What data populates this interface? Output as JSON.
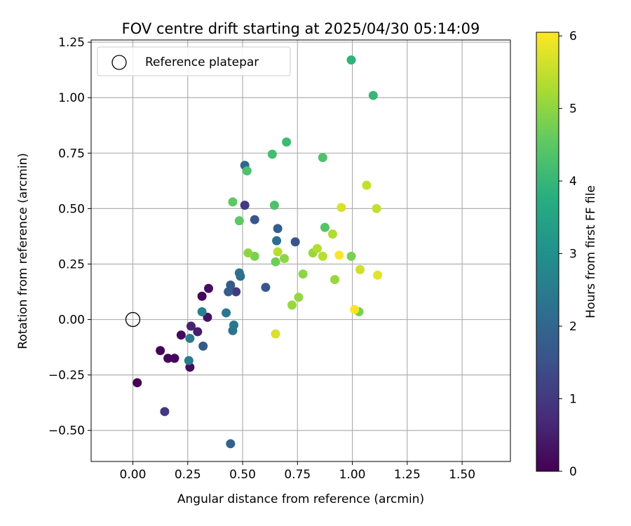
{
  "chart_data": {
    "type": "scatter",
    "title": "FOV centre drift starting at 2025/04/30 05:14:09",
    "xlabel": "Angular distance from reference (arcmin)",
    "ylabel": "Rotation from reference (arcmin)",
    "xlim": [
      -0.19,
      1.72
    ],
    "ylim": [
      -0.64,
      1.26
    ],
    "xticks": [
      "0.00",
      "0.25",
      "0.50",
      "0.75",
      "1.00",
      "1.25",
      "1.50"
    ],
    "yticks": [
      "−0.50",
      "−0.25",
      "0.00",
      "0.25",
      "0.50",
      "0.75",
      "1.00",
      "1.25"
    ],
    "grid": true,
    "legend": {
      "placement": "top-left",
      "entries": [
        "Reference platepar"
      ]
    },
    "reference_point": {
      "x": 0.0,
      "y": 0.0,
      "label": "Reference platepar"
    },
    "colorbar": {
      "label": "Hours from first FF file",
      "range": [
        0,
        6.05
      ],
      "ticks": [
        "0",
        "1",
        "2",
        "3",
        "4",
        "5",
        "6"
      ],
      "colormap": "viridis"
    },
    "points": [
      {
        "x": 0.02,
        "y": -0.285,
        "c": 0.0
      },
      {
        "x": 0.125,
        "y": -0.14,
        "c": 0.05
      },
      {
        "x": 0.16,
        "y": -0.175,
        "c": 0.1
      },
      {
        "x": 0.19,
        "y": -0.175,
        "c": 0.12
      },
      {
        "x": 0.22,
        "y": -0.07,
        "c": 0.15
      },
      {
        "x": 0.26,
        "y": -0.215,
        "c": 0.2
      },
      {
        "x": 0.315,
        "y": 0.105,
        "c": 0.1
      },
      {
        "x": 0.345,
        "y": 0.14,
        "c": 0.25
      },
      {
        "x": 0.34,
        "y": 0.01,
        "c": 0.3
      },
      {
        "x": 0.295,
        "y": -0.055,
        "c": 0.5
      },
      {
        "x": 0.265,
        "y": -0.03,
        "c": 0.6
      },
      {
        "x": 0.145,
        "y": -0.415,
        "c": 1.0
      },
      {
        "x": 0.47,
        "y": 0.125,
        "c": 1.0
      },
      {
        "x": 0.51,
        "y": 0.515,
        "c": 1.05
      },
      {
        "x": 0.32,
        "y": -0.12,
        "c": 1.7
      },
      {
        "x": 0.555,
        "y": 0.45,
        "c": 1.6
      },
      {
        "x": 0.605,
        "y": 0.145,
        "c": 1.6
      },
      {
        "x": 0.74,
        "y": 0.35,
        "c": 1.6
      },
      {
        "x": 0.445,
        "y": 0.155,
        "c": 1.7
      },
      {
        "x": 0.435,
        "y": 0.125,
        "c": 1.8
      },
      {
        "x": 0.445,
        "y": -0.56,
        "c": 1.9
      },
      {
        "x": 0.66,
        "y": 0.41,
        "c": 1.8
      },
      {
        "x": 0.51,
        "y": 0.695,
        "c": 2.0
      },
      {
        "x": 0.655,
        "y": 0.355,
        "c": 2.2
      },
      {
        "x": 0.485,
        "y": 0.21,
        "c": 2.3
      },
      {
        "x": 0.49,
        "y": 0.195,
        "c": 2.2
      },
      {
        "x": 0.425,
        "y": 0.03,
        "c": 2.4
      },
      {
        "x": 0.46,
        "y": -0.025,
        "c": 2.4
      },
      {
        "x": 0.455,
        "y": -0.05,
        "c": 2.3
      },
      {
        "x": 0.26,
        "y": -0.085,
        "c": 2.5
      },
      {
        "x": 0.255,
        "y": -0.185,
        "c": 2.5
      },
      {
        "x": 0.315,
        "y": 0.035,
        "c": 2.6
      },
      {
        "x": 0.995,
        "y": 1.17,
        "c": 3.9
      },
      {
        "x": 1.095,
        "y": 1.01,
        "c": 4.0
      },
      {
        "x": 0.7,
        "y": 0.8,
        "c": 4.1
      },
      {
        "x": 0.635,
        "y": 0.745,
        "c": 4.2
      },
      {
        "x": 0.865,
        "y": 0.73,
        "c": 4.3
      },
      {
        "x": 0.52,
        "y": 0.67,
        "c": 4.3
      },
      {
        "x": 0.645,
        "y": 0.515,
        "c": 4.3
      },
      {
        "x": 0.455,
        "y": 0.53,
        "c": 4.5
      },
      {
        "x": 0.485,
        "y": 0.445,
        "c": 4.5
      },
      {
        "x": 0.875,
        "y": 0.415,
        "c": 4.4
      },
      {
        "x": 0.65,
        "y": 0.26,
        "c": 4.7
      },
      {
        "x": 0.995,
        "y": 0.285,
        "c": 4.8
      },
      {
        "x": 0.555,
        "y": 0.285,
        "c": 4.8
      },
      {
        "x": 1.03,
        "y": 0.035,
        "c": 4.8
      },
      {
        "x": 0.525,
        "y": 0.3,
        "c": 5.0
      },
      {
        "x": 0.69,
        "y": 0.275,
        "c": 5.0
      },
      {
        "x": 0.775,
        "y": 0.205,
        "c": 5.0
      },
      {
        "x": 0.755,
        "y": 0.1,
        "c": 5.05
      },
      {
        "x": 0.725,
        "y": 0.065,
        "c": 5.1
      },
      {
        "x": 0.82,
        "y": 0.3,
        "c": 5.1
      },
      {
        "x": 0.92,
        "y": 0.18,
        "c": 5.1
      },
      {
        "x": 0.91,
        "y": 0.385,
        "c": 5.3
      },
      {
        "x": 0.84,
        "y": 0.32,
        "c": 5.35
      },
      {
        "x": 0.865,
        "y": 0.285,
        "c": 5.4
      },
      {
        "x": 0.66,
        "y": 0.305,
        "c": 5.4
      },
      {
        "x": 1.065,
        "y": 0.605,
        "c": 5.5
      },
      {
        "x": 1.11,
        "y": 0.5,
        "c": 5.5
      },
      {
        "x": 0.65,
        "y": -0.065,
        "c": 5.7
      },
      {
        "x": 1.035,
        "y": 0.225,
        "c": 5.6
      },
      {
        "x": 0.95,
        "y": 0.505,
        "c": 5.7
      },
      {
        "x": 1.115,
        "y": 0.2,
        "c": 5.8
      },
      {
        "x": 0.94,
        "y": 0.29,
        "c": 6.0
      },
      {
        "x": 1.01,
        "y": 0.045,
        "c": 6.0
      }
    ]
  }
}
